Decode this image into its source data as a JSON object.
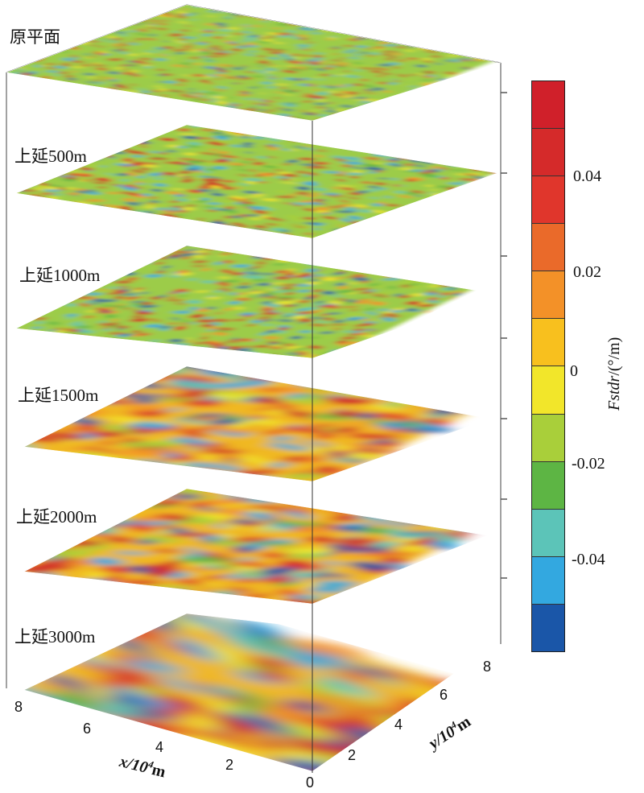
{
  "layers": [
    {
      "label": "原平面",
      "detail": "very-fine"
    },
    {
      "label": "上延500m",
      "detail": "fine"
    },
    {
      "label": "上延1000m",
      "detail": "fine"
    },
    {
      "label": "上延1500m",
      "detail": "medium"
    },
    {
      "label": "上延2000m",
      "detail": "medium"
    },
    {
      "label": "上延3000m",
      "detail": "coarse"
    }
  ],
  "colorbar": {
    "title_prefix": "Fstdr",
    "title_suffix": "/(°/m)",
    "ticks": [
      "0.04",
      "0.02",
      "0",
      "-0.02",
      "-0.04"
    ],
    "colors": [
      "#d0202a",
      "#d52a2a",
      "#e0362c",
      "#ea6a2a",
      "#f39128",
      "#f8c01e",
      "#f2e62a",
      "#a9cf3a",
      "#5db544",
      "#5cc4b8",
      "#33a8e0",
      "#1a56a8"
    ]
  },
  "axes": {
    "x": {
      "title": "x/10",
      "sup": "4",
      "unit": "m",
      "ticks": [
        "8",
        "6",
        "4",
        "2"
      ]
    },
    "y": {
      "title": "y/10",
      "sup": "4",
      "unit": "m",
      "ticks": [
        "0",
        "2",
        "4",
        "6",
        "8"
      ]
    }
  }
}
